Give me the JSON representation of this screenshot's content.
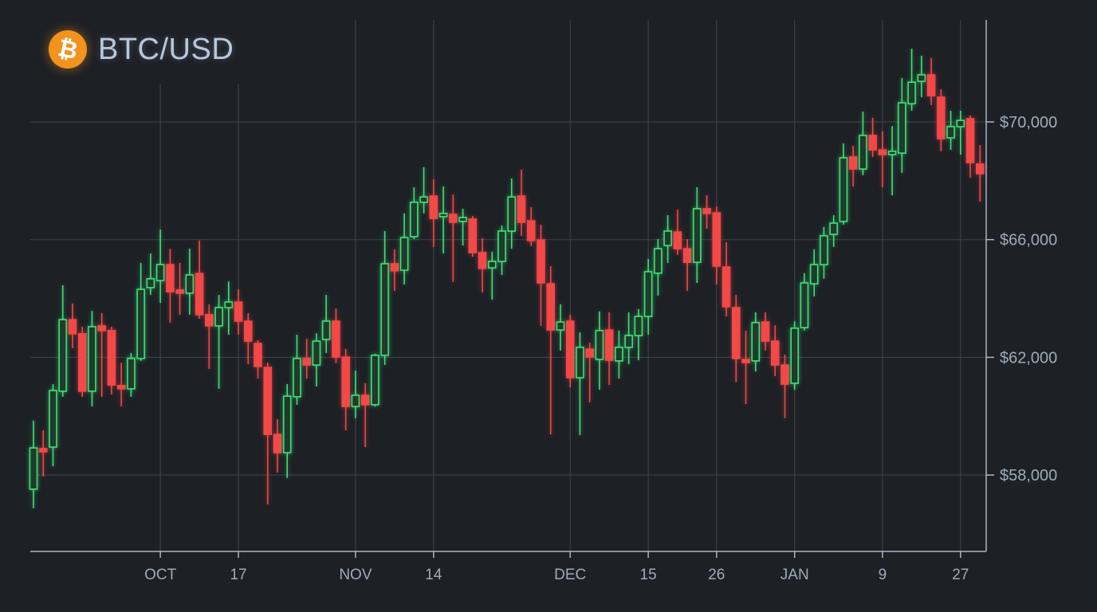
{
  "title": {
    "symbol": "BTC/USD",
    "icon": "bitcoin-icon",
    "icon_glyph": "₿"
  },
  "colors": {
    "up": "#3fe077",
    "down": "#f24848",
    "background": "#1d2025",
    "coin": "#f2931f"
  },
  "chart_data": {
    "type": "candlestick",
    "title": "BTC/USD",
    "xlabel": "",
    "ylabel": "",
    "ylim": [
      55500,
      73500
    ],
    "y_ticks": [
      {
        "value": 70000,
        "label": "$70,000"
      },
      {
        "value": 66000,
        "label": "$66,000"
      },
      {
        "value": 62000,
        "label": "$62,000"
      },
      {
        "value": 58000,
        "label": "$58,000"
      }
    ],
    "x_ticks": [
      {
        "index": 13,
        "label": "OCT"
      },
      {
        "index": 21,
        "label": "17"
      },
      {
        "index": 33,
        "label": "NOV"
      },
      {
        "index": 41,
        "label": "14"
      },
      {
        "index": 55,
        "label": "DEC"
      },
      {
        "index": 63,
        "label": "15"
      },
      {
        "index": 70,
        "label": "26"
      },
      {
        "index": 78,
        "label": "JAN"
      },
      {
        "index": 87,
        "label": "9"
      },
      {
        "index": 95,
        "label": "27"
      }
    ],
    "grid": true,
    "ohlc_fields": [
      "open",
      "high",
      "low",
      "close"
    ],
    "ohlc": [
      [
        57520,
        59850,
        56870,
        58920
      ],
      [
        58900,
        59520,
        57950,
        58790
      ],
      [
        58950,
        61090,
        58300,
        60870
      ],
      [
        60850,
        64450,
        60660,
        63280
      ],
      [
        63280,
        63830,
        62310,
        62800
      ],
      [
        62800,
        63040,
        60660,
        60850
      ],
      [
        60850,
        63580,
        60330,
        63040
      ],
      [
        63070,
        63500,
        60660,
        62910
      ],
      [
        62910,
        63040,
        60740,
        61060
      ],
      [
        61040,
        61820,
        60330,
        60960
      ],
      [
        60930,
        62150,
        60660,
        61960
      ],
      [
        61960,
        65210,
        61880,
        64310
      ],
      [
        64370,
        65530,
        64120,
        64670
      ],
      [
        64610,
        66340,
        63850,
        65150
      ],
      [
        65150,
        65690,
        63180,
        64230
      ],
      [
        64290,
        65210,
        63450,
        64180
      ],
      [
        64180,
        65690,
        63450,
        64800
      ],
      [
        64850,
        65970,
        63310,
        63450
      ],
      [
        63450,
        63800,
        61610,
        63070
      ],
      [
        63070,
        64120,
        60930,
        63690
      ],
      [
        63690,
        64580,
        62770,
        63880
      ],
      [
        63880,
        64310,
        62770,
        63230
      ],
      [
        63230,
        63500,
        61770,
        62550
      ],
      [
        62470,
        62580,
        61280,
        61690
      ],
      [
        61660,
        61820,
        57000,
        59380
      ],
      [
        59380,
        59900,
        58090,
        58760
      ],
      [
        58760,
        61090,
        57900,
        60680
      ],
      [
        60660,
        62770,
        60390,
        61960
      ],
      [
        61960,
        62630,
        61280,
        61740
      ],
      [
        61740,
        62820,
        61010,
        62550
      ],
      [
        62610,
        64120,
        62150,
        63230
      ],
      [
        63230,
        63660,
        61800,
        62010
      ],
      [
        62010,
        62280,
        59520,
        60330
      ],
      [
        60330,
        61550,
        59930,
        60710
      ],
      [
        60710,
        61120,
        58950,
        60390
      ],
      [
        60390,
        62120,
        60330,
        62070
      ],
      [
        62070,
        66290,
        61740,
        65180
      ],
      [
        65180,
        65670,
        64260,
        64940
      ],
      [
        64960,
        66890,
        64480,
        66070
      ],
      [
        66100,
        67780,
        66020,
        67270
      ],
      [
        67270,
        68460,
        66890,
        67450
      ],
      [
        67480,
        68050,
        65750,
        66720
      ],
      [
        66780,
        67810,
        65530,
        66890
      ],
      [
        66860,
        67540,
        64560,
        66590
      ],
      [
        66620,
        67050,
        65800,
        66750
      ],
      [
        66700,
        66800,
        65420,
        65560
      ],
      [
        65560,
        66050,
        64210,
        65020
      ],
      [
        65040,
        65590,
        63960,
        65260
      ],
      [
        65260,
        66480,
        64800,
        66290
      ],
      [
        66290,
        68080,
        65690,
        67450
      ],
      [
        67480,
        68380,
        66130,
        66590
      ],
      [
        66640,
        67100,
        65780,
        65970
      ],
      [
        65990,
        66510,
        63070,
        64530
      ],
      [
        64500,
        65100,
        59380,
        62930
      ],
      [
        62930,
        63800,
        62230,
        63200
      ],
      [
        63230,
        63450,
        60980,
        61310
      ],
      [
        61310,
        62850,
        59360,
        62340
      ],
      [
        62280,
        62500,
        60470,
        62010
      ],
      [
        61930,
        63560,
        60900,
        62910
      ],
      [
        62930,
        63530,
        61060,
        61900
      ],
      [
        61880,
        62910,
        61280,
        62340
      ],
      [
        62340,
        63530,
        61770,
        62740
      ],
      [
        62740,
        63640,
        61900,
        63390
      ],
      [
        63390,
        65340,
        62770,
        64910
      ],
      [
        64860,
        66020,
        64100,
        65690
      ],
      [
        65800,
        66830,
        65210,
        66290
      ],
      [
        66260,
        67020,
        65480,
        65690
      ],
      [
        65690,
        66020,
        64260,
        65230
      ],
      [
        65230,
        67780,
        64530,
        67050
      ],
      [
        67050,
        67510,
        66370,
        66890
      ],
      [
        66910,
        67130,
        64480,
        65100
      ],
      [
        65070,
        65910,
        63390,
        63720
      ],
      [
        63690,
        64120,
        61170,
        61960
      ],
      [
        61930,
        62910,
        60410,
        61850
      ],
      [
        61880,
        63530,
        61520,
        63180
      ],
      [
        63200,
        63530,
        62230,
        62550
      ],
      [
        62550,
        63090,
        61360,
        61740
      ],
      [
        61740,
        62090,
        59930,
        61090
      ],
      [
        61120,
        63230,
        60900,
        62990
      ],
      [
        63010,
        64860,
        62910,
        64530
      ],
      [
        64500,
        65670,
        64070,
        65150
      ],
      [
        65150,
        66430,
        64670,
        66130
      ],
      [
        66180,
        66830,
        65750,
        66560
      ],
      [
        66620,
        69270,
        66510,
        68780
      ],
      [
        68810,
        69190,
        67810,
        68400
      ],
      [
        68400,
        70350,
        68190,
        69540
      ],
      [
        69540,
        70140,
        68810,
        69050
      ],
      [
        69050,
        69680,
        67780,
        68890
      ],
      [
        68890,
        69860,
        67510,
        69000
      ],
      [
        68940,
        71490,
        68270,
        70650
      ],
      [
        70620,
        72490,
        70380,
        71350
      ],
      [
        71380,
        72250,
        70840,
        71600
      ],
      [
        71600,
        72170,
        70570,
        70890
      ],
      [
        70840,
        71110,
        69000,
        69430
      ],
      [
        69460,
        70380,
        69050,
        69840
      ],
      [
        69840,
        70380,
        68890,
        70050
      ],
      [
        70110,
        70220,
        68100,
        68620
      ],
      [
        68570,
        69210,
        67290,
        68240
      ]
    ]
  }
}
